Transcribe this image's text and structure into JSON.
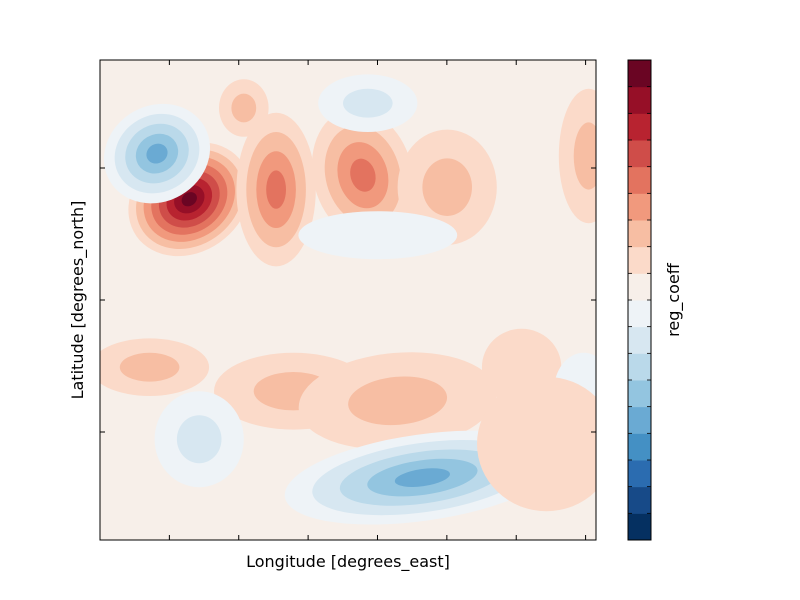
{
  "chart_data": {
    "type": "heatmap",
    "subtype": "filled-contour",
    "title": "",
    "xlabel": "Longitude [degrees_east]",
    "ylabel": "Latitude [degrees_north]",
    "x_tick_labels": [],
    "y_tick_labels": [],
    "colorbar": {
      "label": "reg_coeff",
      "orientation": "vertical",
      "colormap": "RdBu_r",
      "levels": 18,
      "tick_labels": [],
      "colors_bottom_to_top": [
        "#053061",
        "#174a88",
        "#2b6cb0",
        "#4490c4",
        "#6aaad3",
        "#93c5e0",
        "#bad9ea",
        "#d7e7f1",
        "#eef3f7",
        "#f7efe9",
        "#fbdac9",
        "#f7bea3",
        "#f1997d",
        "#e3735f",
        "#cf4d49",
        "#b82330",
        "#960f27",
        "#6a0523"
      ]
    },
    "background_color": "#f7efe9",
    "features": [
      {
        "name": "strong-positive-core",
        "sign": "+",
        "peak_level": 17,
        "x": 0.18,
        "y": 0.29,
        "sx": 0.065,
        "sy": 0.055,
        "rotate": -35
      },
      {
        "name": "negative-core-northwest",
        "sign": "-",
        "peak_level": 4,
        "x": 0.115,
        "y": 0.195,
        "sx": 0.055,
        "sy": 0.05,
        "rotate": -30
      },
      {
        "name": "positive-east-1",
        "sign": "+",
        "peak_level": 13,
        "x": 0.355,
        "y": 0.27,
        "sx": 0.04,
        "sy": 0.08,
        "rotate": 0
      },
      {
        "name": "positive-east-2",
        "sign": "+",
        "peak_level": 13,
        "x": 0.53,
        "y": 0.24,
        "sx": 0.05,
        "sy": 0.07,
        "rotate": -15
      },
      {
        "name": "positive-east-3",
        "sign": "+",
        "peak_level": 11,
        "x": 0.7,
        "y": 0.265,
        "sx": 0.05,
        "sy": 0.06,
        "rotate": 0
      },
      {
        "name": "positive-far-east",
        "sign": "+",
        "peak_level": 11,
        "x": 0.985,
        "y": 0.2,
        "sx": 0.03,
        "sy": 0.07,
        "rotate": 0
      },
      {
        "name": "positive-north-small",
        "sign": "+",
        "peak_level": 11,
        "x": 0.29,
        "y": 0.1,
        "sx": 0.025,
        "sy": 0.03,
        "rotate": 0
      },
      {
        "name": "negative-north-band",
        "sign": "-",
        "peak_level": 7,
        "x": 0.54,
        "y": 0.09,
        "sx": 0.05,
        "sy": 0.03,
        "rotate": 0
      },
      {
        "name": "negative-weak-mid",
        "sign": "-",
        "peak_level": 8,
        "x": 0.56,
        "y": 0.365,
        "sx": 0.08,
        "sy": 0.025,
        "rotate": 0
      },
      {
        "name": "positive-south-band-west",
        "sign": "+",
        "peak_level": 11,
        "x": 0.1,
        "y": 0.64,
        "sx": 0.06,
        "sy": 0.03,
        "rotate": 0
      },
      {
        "name": "positive-south-band-mid",
        "sign": "+",
        "peak_level": 11,
        "x": 0.39,
        "y": 0.69,
        "sx": 0.08,
        "sy": 0.04,
        "rotate": 0
      },
      {
        "name": "positive-south-band-east",
        "sign": "+",
        "peak_level": 11,
        "x": 0.6,
        "y": 0.71,
        "sx": 0.1,
        "sy": 0.05,
        "rotate": -5
      },
      {
        "name": "positive-east-south",
        "sign": "+",
        "peak_level": 10,
        "x": 0.85,
        "y": 0.64,
        "sx": 0.04,
        "sy": 0.04,
        "rotate": 0
      },
      {
        "name": "negative-southeast-small",
        "sign": "-",
        "peak_level": 8,
        "x": 0.975,
        "y": 0.69,
        "sx": 0.03,
        "sy": 0.04,
        "rotate": 0
      },
      {
        "name": "negative-southwest-small",
        "sign": "-",
        "peak_level": 7,
        "x": 0.2,
        "y": 0.79,
        "sx": 0.045,
        "sy": 0.05,
        "rotate": 0
      },
      {
        "name": "negative-south-band",
        "sign": "-",
        "peak_level": 4,
        "x": 0.65,
        "y": 0.87,
        "sx": 0.14,
        "sy": 0.045,
        "rotate": -8
      },
      {
        "name": "positive-southeast-corner",
        "sign": "+",
        "peak_level": 10,
        "x": 0.9,
        "y": 0.8,
        "sx": 0.07,
        "sy": 0.07,
        "rotate": 0
      }
    ]
  }
}
